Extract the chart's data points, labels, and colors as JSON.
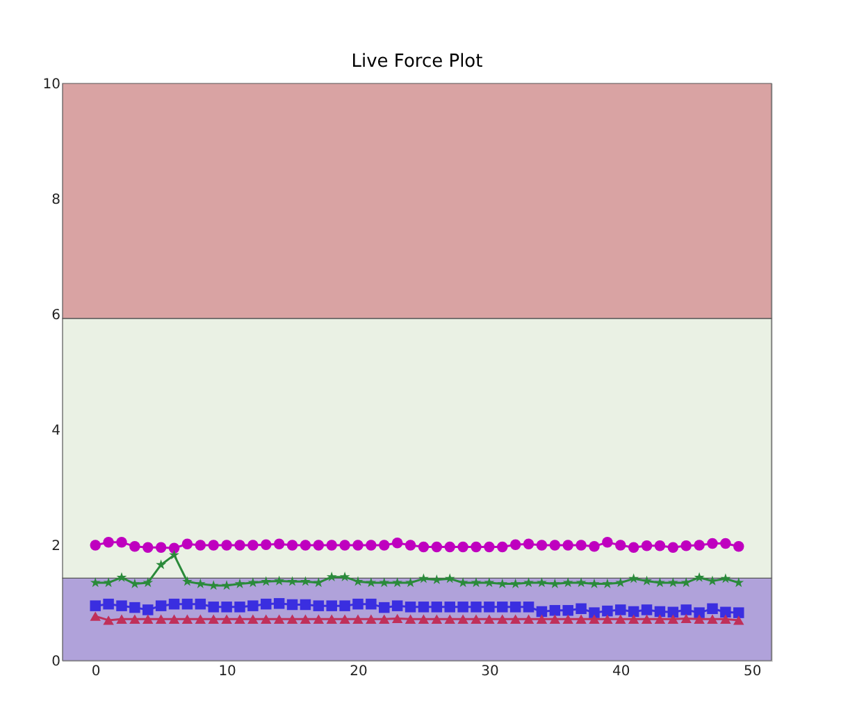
{
  "chart_data": {
    "type": "line",
    "title": "Live Force Plot",
    "x": [
      0,
      1,
      2,
      3,
      4,
      5,
      6,
      7,
      8,
      9,
      10,
      11,
      12,
      13,
      14,
      15,
      16,
      17,
      18,
      19,
      20,
      21,
      22,
      23,
      24,
      25,
      26,
      27,
      28,
      29,
      30,
      31,
      32,
      33,
      34,
      35,
      36,
      37,
      38,
      39,
      40,
      41,
      42,
      43,
      44,
      45,
      46,
      47,
      48,
      49
    ],
    "series": [
      {
        "color": "#bf00bf",
        "marker": "circle",
        "values": [
          2.0,
          2.05,
          2.05,
          1.98,
          1.96,
          1.96,
          1.95,
          2.02,
          2.0,
          2.0,
          2.0,
          2.0,
          2.0,
          2.01,
          2.02,
          2.0,
          2.0,
          2.0,
          2.0,
          2.0,
          2.0,
          2.0,
          2.0,
          2.04,
          2.0,
          1.97,
          1.97,
          1.97,
          1.97,
          1.97,
          1.97,
          1.97,
          2.01,
          2.02,
          2.0,
          2.0,
          2.0,
          2.0,
          1.98,
          2.05,
          2.0,
          1.96,
          1.99,
          1.99,
          1.96,
          1.99,
          2.0,
          2.03,
          2.03,
          1.98
        ]
      },
      {
        "color": "#2a8a3a",
        "marker": "star",
        "values": [
          1.35,
          1.35,
          1.44,
          1.33,
          1.35,
          1.66,
          1.83,
          1.37,
          1.33,
          1.3,
          1.3,
          1.33,
          1.35,
          1.37,
          1.38,
          1.37,
          1.37,
          1.35,
          1.45,
          1.45,
          1.37,
          1.35,
          1.35,
          1.35,
          1.35,
          1.42,
          1.4,
          1.42,
          1.35,
          1.35,
          1.35,
          1.33,
          1.33,
          1.35,
          1.35,
          1.33,
          1.35,
          1.35,
          1.33,
          1.33,
          1.35,
          1.42,
          1.38,
          1.35,
          1.35,
          1.35,
          1.44,
          1.38,
          1.42,
          1.35
        ]
      },
      {
        "color": "#3a2ee0",
        "marker": "square",
        "values": [
          0.95,
          0.98,
          0.95,
          0.92,
          0.88,
          0.95,
          0.98,
          0.98,
          0.98,
          0.93,
          0.93,
          0.93,
          0.95,
          0.98,
          0.99,
          0.97,
          0.97,
          0.95,
          0.95,
          0.95,
          0.98,
          0.98,
          0.92,
          0.95,
          0.93,
          0.93,
          0.93,
          0.93,
          0.93,
          0.93,
          0.93,
          0.93,
          0.93,
          0.93,
          0.85,
          0.87,
          0.87,
          0.9,
          0.83,
          0.86,
          0.88,
          0.85,
          0.88,
          0.85,
          0.84,
          0.88,
          0.83,
          0.9,
          0.84,
          0.83
        ]
      },
      {
        "color": "#c0305a",
        "marker": "triangle",
        "values": [
          0.77,
          0.7,
          0.72,
          0.72,
          0.72,
          0.72,
          0.72,
          0.72,
          0.72,
          0.72,
          0.72,
          0.72,
          0.72,
          0.72,
          0.72,
          0.72,
          0.72,
          0.72,
          0.72,
          0.72,
          0.72,
          0.72,
          0.72,
          0.73,
          0.72,
          0.72,
          0.72,
          0.72,
          0.72,
          0.72,
          0.72,
          0.72,
          0.72,
          0.72,
          0.72,
          0.72,
          0.72,
          0.72,
          0.72,
          0.72,
          0.72,
          0.72,
          0.72,
          0.72,
          0.72,
          0.73,
          0.72,
          0.72,
          0.72,
          0.7
        ]
      }
    ],
    "bands": [
      {
        "axis": "y",
        "from": 0,
        "to": 1.43,
        "color": "#b0a2da"
      },
      {
        "axis": "y",
        "from": 1.43,
        "to": 5.93,
        "color": "#eaf1e4"
      },
      {
        "axis": "y",
        "from": 5.93,
        "to": 10,
        "color": "#d9a3a3"
      }
    ],
    "xlim": [
      -2.5,
      51.5
    ],
    "ylim": [
      0,
      10
    ],
    "xticks": [
      0,
      10,
      20,
      30,
      40,
      50
    ],
    "yticks": [
      0,
      2,
      4,
      6,
      8,
      10
    ],
    "line_style": "solid"
  }
}
